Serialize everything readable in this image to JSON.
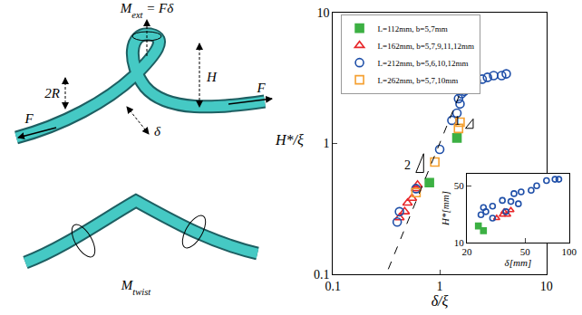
{
  "chart_data": [
    {
      "type": "scatter",
      "x_label": "δ/ξ",
      "y_label": "H*/ξ",
      "log": true,
      "xlim": [
        0.1,
        10
      ],
      "ylim": [
        0.1,
        10
      ],
      "xticks": [
        0.1,
        1,
        10
      ],
      "yticks": [
        0.1,
        1,
        10
      ],
      "legend": "upper left",
      "grid": false,
      "series": [
        {
          "name": "L=112mm, b=5,7mm",
          "color": "#3cb043",
          "marker": "square",
          "x": [
            0.8,
            1.45
          ],
          "values": [
            0.5,
            1.1
          ]
        },
        {
          "name": "L=162mm, b=5,7,9,11,12mm",
          "color": "#e8282b",
          "marker": "triangle-open",
          "x": [
            0.42,
            0.47,
            0.5,
            0.55,
            0.6,
            0.62
          ],
          "values": [
            0.27,
            0.3,
            0.35,
            0.38,
            0.45,
            0.48
          ]
        },
        {
          "name": "L=212mm, b=5,6,10,12mm",
          "color": "#1f4fa8",
          "marker": "circle-open",
          "x": [
            0.4,
            0.42,
            0.6,
            1.0,
            1.3,
            1.45,
            1.5,
            1.55,
            1.6,
            1.7,
            1.7,
            1.8,
            1.9,
            2.0,
            2.2,
            2.5,
            2.8,
            3.2,
            3.8,
            4.2
          ],
          "values": [
            0.25,
            0.3,
            0.45,
            0.9,
            1.5,
            1.7,
            2.2,
            2.0,
            2.4,
            2.5,
            2.8,
            2.6,
            3.0,
            2.8,
            3.0,
            3.1,
            3.2,
            3.3,
            3.3,
            3.4
          ]
        },
        {
          "name": "L=262mm, b=5,7,10mm",
          "color": "#f5a030",
          "marker": "square-open",
          "x": [
            0.6,
            0.9,
            1.5,
            1.55
          ],
          "values": [
            0.42,
            0.72,
            1.3,
            1.45
          ]
        },
        {
          "type": "line",
          "line_style": "dashed",
          "color": "#000000",
          "x": [
            0.33,
            1.8
          ],
          "values": [
            0.109,
            3.24
          ]
        }
      ],
      "annotations": [
        {
          "text": "1",
          "x": 1.63,
          "y": 1.48
        },
        {
          "text": "2",
          "x": 0.56,
          "y": 0.68
        }
      ]
    },
    {
      "type": "scatter",
      "x_label": "δ[mm]",
      "y_label": "H*[mm]",
      "log": true,
      "xlim": [
        20,
        100
      ],
      "ylim": [
        10,
        70
      ],
      "xticks": [
        20,
        50,
        100
      ],
      "yticks": [
        10,
        50
      ],
      "grid": false,
      "series": [
        {
          "color": "#3cb043",
          "marker": "square",
          "x": [
            24,
            26
          ],
          "values": [
            16,
            14
          ]
        },
        {
          "color": "#e8282b",
          "marker": "triangle-open",
          "x": [
            32,
            35,
            36,
            38,
            40
          ],
          "values": [
            20,
            22,
            24,
            22,
            25
          ]
        },
        {
          "color": "#1f4fa8",
          "marker": "circle-open",
          "x": [
            25,
            26,
            27,
            30,
            30,
            35,
            37,
            40,
            42,
            45,
            47,
            55,
            60,
            70,
            80,
            85
          ],
          "values": [
            22,
            27,
            24,
            28,
            20,
            33,
            24,
            32,
            40,
            30,
            42,
            44,
            50,
            58,
            60,
            60
          ]
        }
      ]
    }
  ],
  "diagram": {
    "moment_ext": {
      "base": "M",
      "sub": "ext",
      "rest": " = Fδ"
    },
    "radius": "2R",
    "height": "H",
    "force": "F",
    "offset": "δ",
    "moment_twist": {
      "base": "M",
      "sub": "twist"
    }
  }
}
